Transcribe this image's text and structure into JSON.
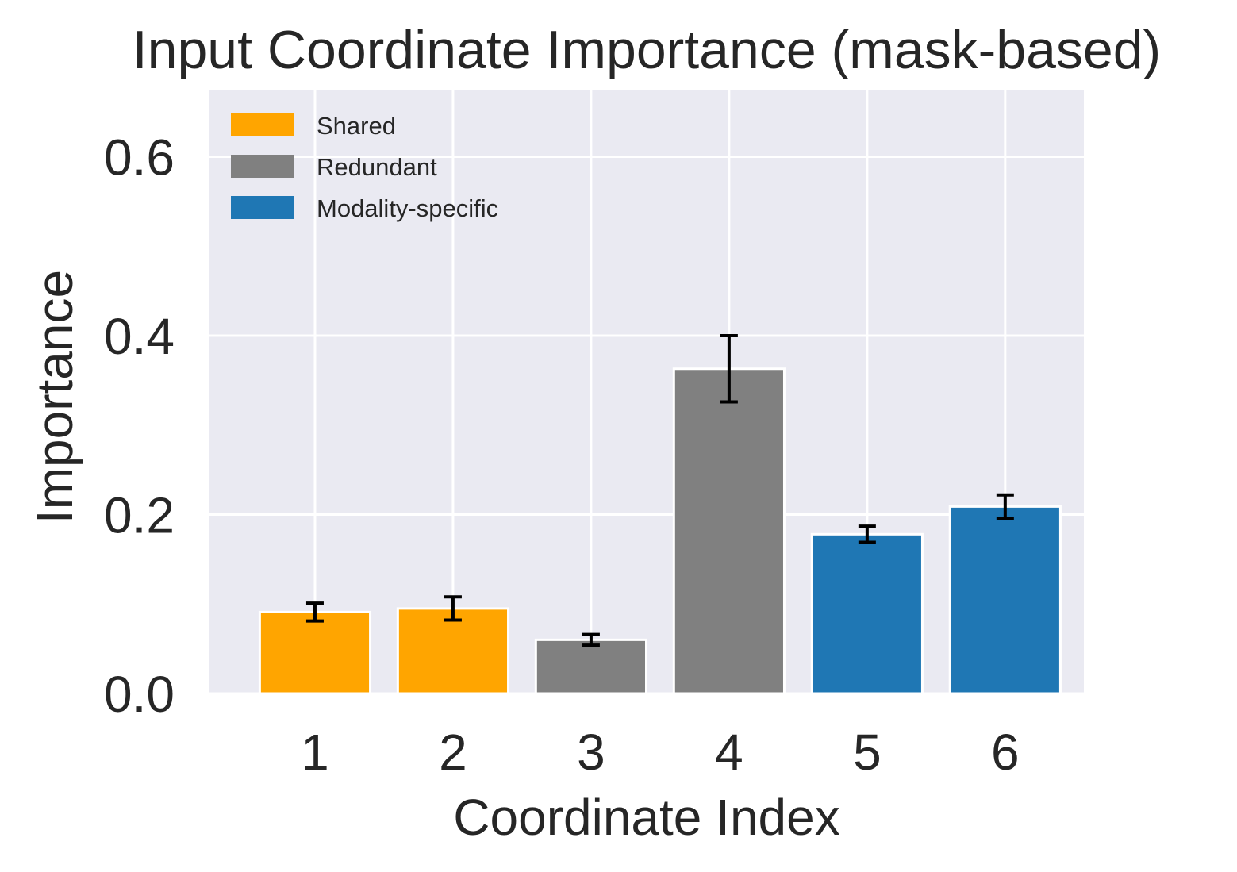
{
  "chart_data": {
    "type": "bar",
    "title": "Input Coordinate Importance (mask-based)",
    "xlabel": "Coordinate Index",
    "ylabel": "Importance",
    "categories": [
      "1",
      "2",
      "3",
      "4",
      "5",
      "6"
    ],
    "values": [
      0.091,
      0.095,
      0.06,
      0.363,
      0.178,
      0.209
    ],
    "errors": [
      0.01,
      0.013,
      0.006,
      0.037,
      0.009,
      0.013
    ],
    "groups": [
      "Shared",
      "Shared",
      "Redundant",
      "Redundant",
      "Modality-specific",
      "Modality-specific"
    ],
    "ylim": [
      0,
      0.675
    ],
    "yticks": [
      0.0,
      0.2,
      0.4,
      0.6
    ],
    "ytick_labels": [
      "0.0",
      "0.2",
      "0.4",
      "0.6"
    ],
    "grid": true,
    "legend_position": "top-left",
    "legend": [
      {
        "label": "Shared",
        "color": "#FFA500"
      },
      {
        "label": "Redundant",
        "color": "#808080"
      },
      {
        "label": "Modality-specific",
        "color": "#1F77B4"
      }
    ],
    "colors": {
      "background": "#EAEAF2",
      "grid": "#FFFFFF",
      "error_bar": "#000000",
      "text": "#262626"
    }
  }
}
